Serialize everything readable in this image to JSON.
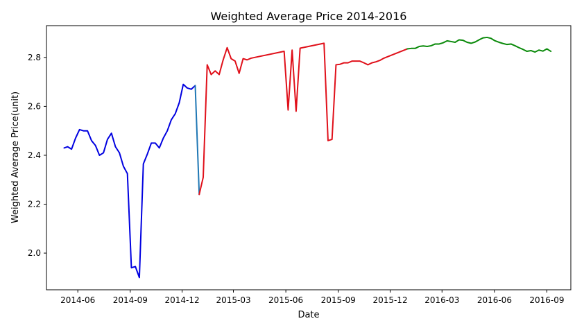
{
  "chart_data": {
    "type": "line",
    "title": "Weighted Average Price 2014-2016",
    "xlabel": "Date",
    "ylabel": "Weighted Average Price(unit)",
    "xlim": [
      "2014-04-07",
      "2016-10-13"
    ],
    "ylim": [
      1.85,
      2.93
    ],
    "x_ticks": [
      "2014-06",
      "2014-09",
      "2014-12",
      "2015-03",
      "2015-06",
      "2015-09",
      "2015-12",
      "2016-03",
      "2016-06",
      "2016-09"
    ],
    "y_ticks": [
      2.0,
      2.2,
      2.4,
      2.6,
      2.8
    ],
    "grid": false,
    "series": [
      {
        "color": "#0000e0",
        "points": [
          [
            "2014-05-08",
            2.43
          ],
          [
            "2014-05-14",
            2.435
          ],
          [
            "2014-05-21",
            2.425
          ],
          [
            "2014-05-28",
            2.47
          ],
          [
            "2014-06-04",
            2.505
          ],
          [
            "2014-06-11",
            2.5
          ],
          [
            "2014-06-18",
            2.5
          ],
          [
            "2014-06-25",
            2.46
          ],
          [
            "2014-07-02",
            2.44
          ],
          [
            "2014-07-09",
            2.4
          ],
          [
            "2014-07-16",
            2.41
          ],
          [
            "2014-07-23",
            2.465
          ],
          [
            "2014-07-30",
            2.49
          ],
          [
            "2014-08-06",
            2.435
          ],
          [
            "2014-08-13",
            2.41
          ],
          [
            "2014-08-20",
            2.355
          ],
          [
            "2014-08-27",
            2.325
          ],
          [
            "2014-09-03",
            1.94
          ],
          [
            "2014-09-10",
            1.945
          ],
          [
            "2014-09-17",
            1.9
          ],
          [
            "2014-09-24",
            2.365
          ],
          [
            "2014-10-01",
            2.405
          ],
          [
            "2014-10-08",
            2.45
          ],
          [
            "2014-10-15",
            2.45
          ],
          [
            "2014-10-22",
            2.43
          ],
          [
            "2014-10-29",
            2.47
          ],
          [
            "2014-11-05",
            2.5
          ],
          [
            "2014-11-12",
            2.545
          ],
          [
            "2014-11-19",
            2.57
          ],
          [
            "2014-11-26",
            2.615
          ],
          [
            "2014-12-03",
            2.69
          ],
          [
            "2014-12-10",
            2.675
          ],
          [
            "2014-12-17",
            2.67
          ],
          [
            "2014-12-24",
            2.685
          ]
        ]
      },
      {
        "color": "#1f77b4",
        "points": [
          [
            "2014-12-24",
            2.685
          ],
          [
            "2014-12-31",
            2.24
          ]
        ]
      },
      {
        "color": "#e0101a",
        "points": [
          [
            "2014-12-31",
            2.24
          ],
          [
            "2015-01-07",
            2.31
          ],
          [
            "2015-01-14",
            2.77
          ],
          [
            "2015-01-21",
            2.73
          ],
          [
            "2015-01-28",
            2.745
          ],
          [
            "2015-02-04",
            2.73
          ],
          [
            "2015-02-11",
            2.79
          ],
          [
            "2015-02-18",
            2.84
          ],
          [
            "2015-02-25",
            2.795
          ],
          [
            "2015-03-04",
            2.785
          ],
          [
            "2015-03-11",
            2.735
          ],
          [
            "2015-03-18",
            2.795
          ],
          [
            "2015-03-25",
            2.79
          ],
          [
            "2015-04-01",
            2.797
          ],
          [
            "2015-05-29",
            2.825
          ],
          [
            "2015-06-05",
            2.585
          ],
          [
            "2015-06-12",
            2.83
          ],
          [
            "2015-06-19",
            2.58
          ],
          [
            "2015-06-26",
            2.838
          ],
          [
            "2015-08-07",
            2.858
          ],
          [
            "2015-08-14",
            2.46
          ],
          [
            "2015-08-21",
            2.465
          ],
          [
            "2015-08-28",
            2.77
          ],
          [
            "2015-09-04",
            2.772
          ],
          [
            "2015-09-11",
            2.778
          ],
          [
            "2015-09-18",
            2.778
          ],
          [
            "2015-09-25",
            2.785
          ],
          [
            "2015-10-02",
            2.785
          ],
          [
            "2015-10-09",
            2.785
          ],
          [
            "2015-10-16",
            2.778
          ],
          [
            "2015-10-23",
            2.77
          ],
          [
            "2015-10-30",
            2.778
          ],
          [
            "2015-11-06",
            2.782
          ],
          [
            "2015-11-13",
            2.788
          ],
          [
            "2015-11-20",
            2.797
          ],
          [
            "2015-12-31",
            2.835
          ]
        ]
      },
      {
        "color": "#0a8a0a",
        "points": [
          [
            "2015-12-31",
            2.835
          ],
          [
            "2016-01-07",
            2.837
          ],
          [
            "2016-01-14",
            2.837
          ],
          [
            "2016-01-21",
            2.845
          ],
          [
            "2016-01-28",
            2.847
          ],
          [
            "2016-02-04",
            2.845
          ],
          [
            "2016-02-11",
            2.848
          ],
          [
            "2016-02-18",
            2.855
          ],
          [
            "2016-02-25",
            2.855
          ],
          [
            "2016-03-03",
            2.86
          ],
          [
            "2016-03-10",
            2.868
          ],
          [
            "2016-03-17",
            2.865
          ],
          [
            "2016-03-24",
            2.862
          ],
          [
            "2016-03-31",
            2.872
          ],
          [
            "2016-04-07",
            2.87
          ],
          [
            "2016-04-14",
            2.862
          ],
          [
            "2016-04-21",
            2.858
          ],
          [
            "2016-04-28",
            2.863
          ],
          [
            "2016-05-05",
            2.872
          ],
          [
            "2016-05-12",
            2.88
          ],
          [
            "2016-05-19",
            2.882
          ],
          [
            "2016-05-26",
            2.878
          ],
          [
            "2016-06-02",
            2.868
          ],
          [
            "2016-06-09",
            2.862
          ],
          [
            "2016-06-16",
            2.857
          ],
          [
            "2016-06-23",
            2.853
          ],
          [
            "2016-06-30",
            2.855
          ],
          [
            "2016-07-07",
            2.848
          ],
          [
            "2016-07-14",
            2.84
          ],
          [
            "2016-07-21",
            2.833
          ],
          [
            "2016-07-28",
            2.825
          ],
          [
            "2016-08-04",
            2.828
          ],
          [
            "2016-08-11",
            2.822
          ],
          [
            "2016-08-18",
            2.83
          ],
          [
            "2016-08-25",
            2.826
          ],
          [
            "2016-09-01",
            2.835
          ],
          [
            "2016-09-08",
            2.825
          ]
        ]
      }
    ]
  }
}
